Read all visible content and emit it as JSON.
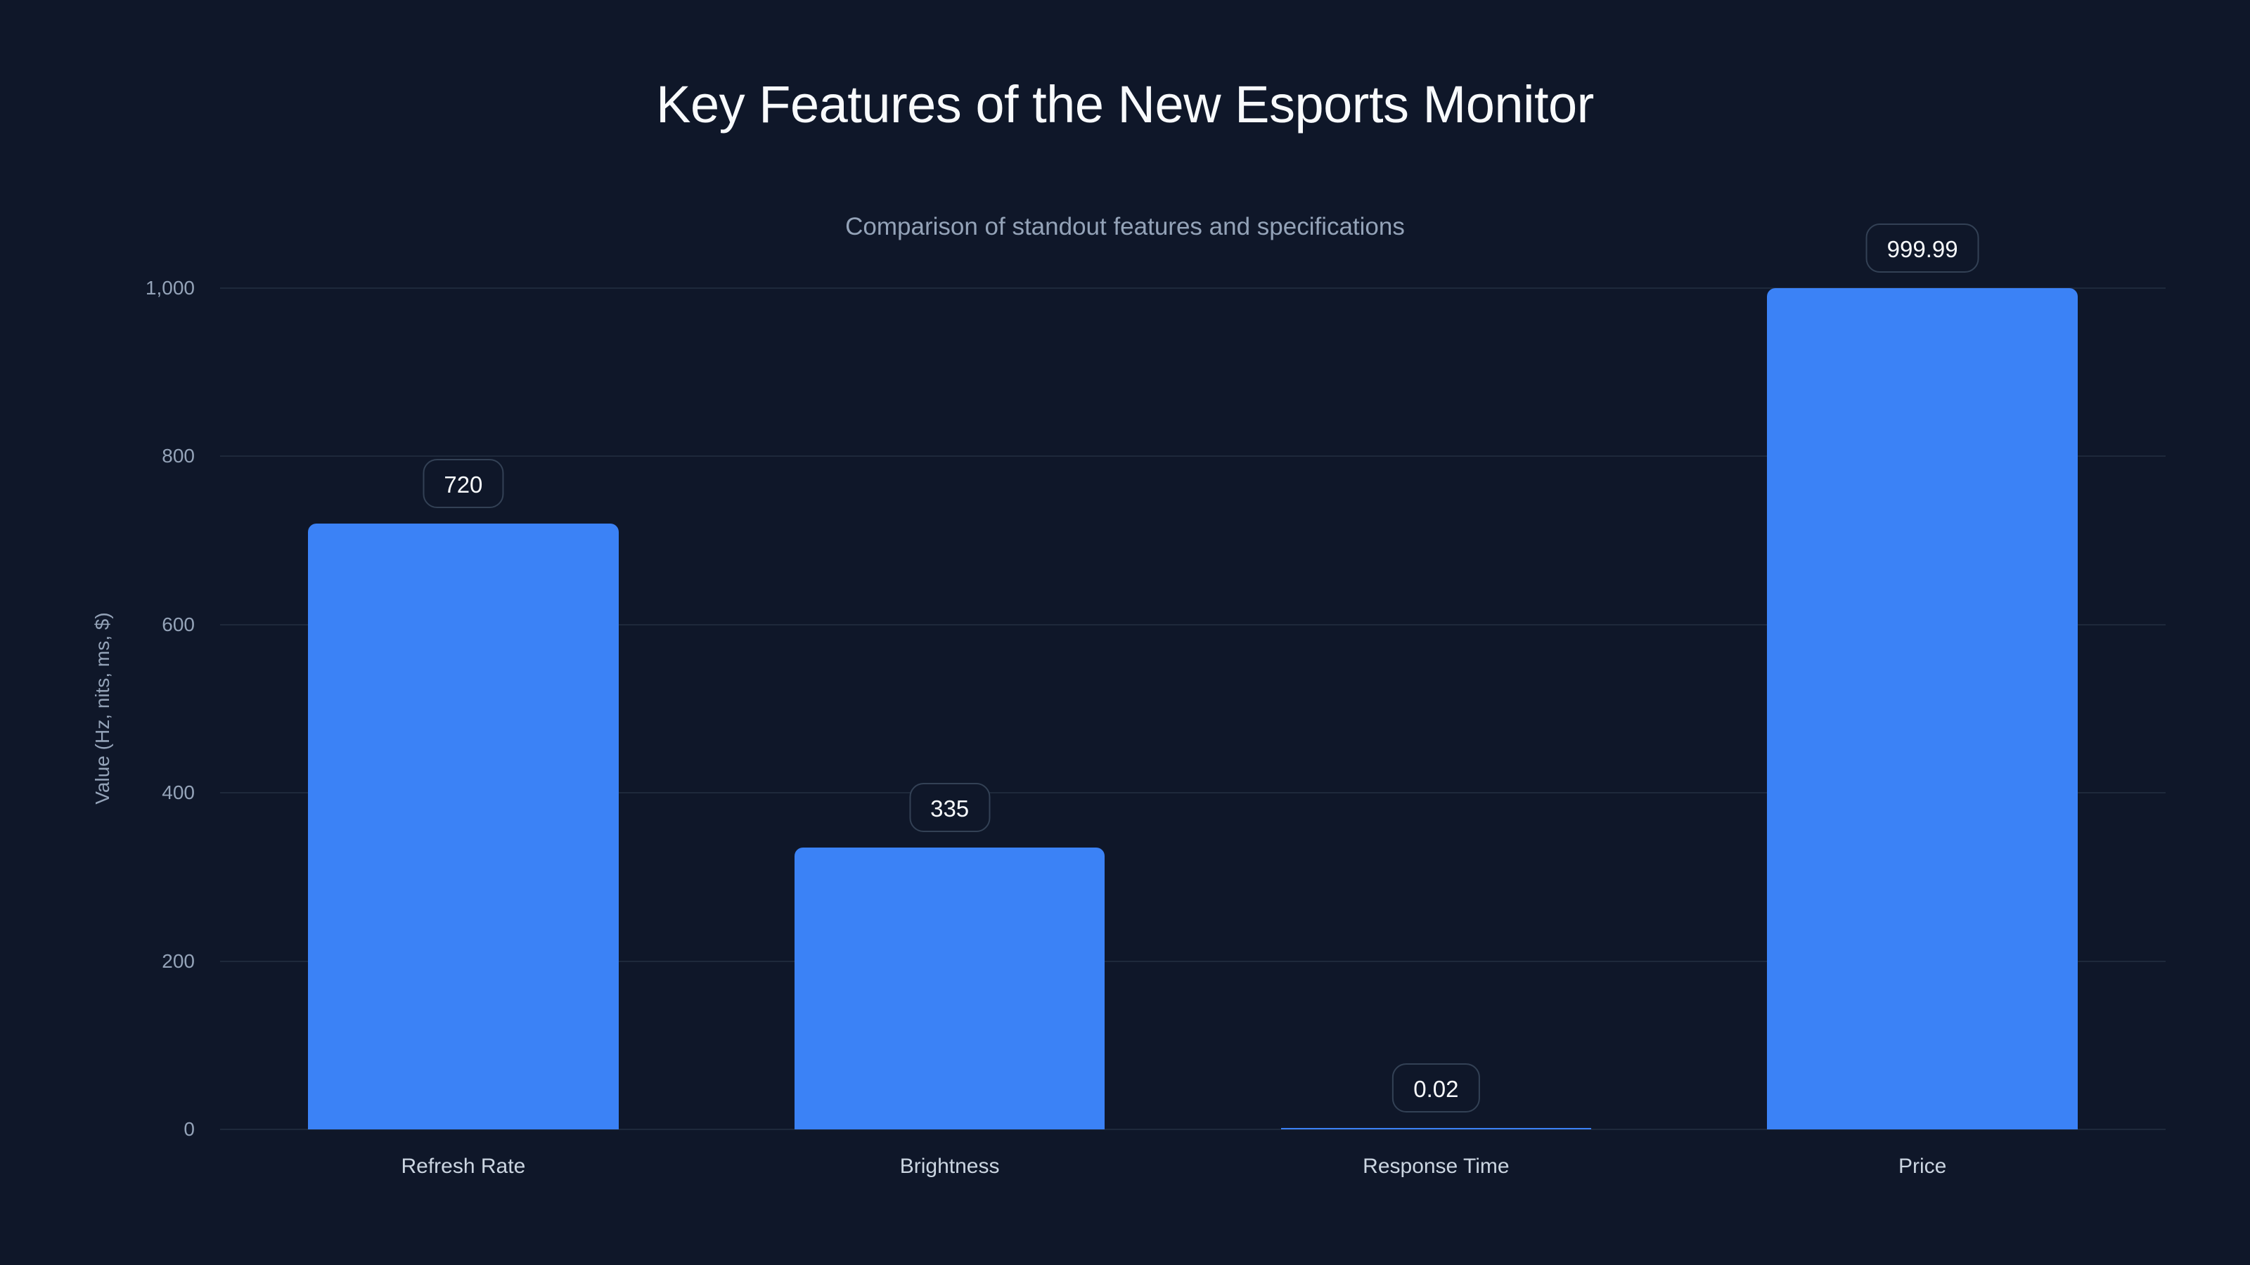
{
  "header": {
    "title": "Key Features of the New Esports Monitor",
    "subtitle": "Comparison of standout features and specifications"
  },
  "colors": {
    "background": "#0f1729",
    "bar": "#3b82f6",
    "gridline": "#1e293b",
    "title": "#f8fafc",
    "subtitle": "#94a3b8",
    "tick": "#94a3b8",
    "category": "#cbd5e1",
    "badge_border": "#334155"
  },
  "axes": {
    "ylabel": "Value (Hz, nits, ms, $)",
    "yticks": [
      "0",
      "200",
      "400",
      "600",
      "800",
      "1,000"
    ]
  },
  "chart_data": {
    "type": "bar",
    "title": "Key Features of the New Esports Monitor",
    "subtitle": "Comparison of standout features and specifications",
    "xlabel": "",
    "ylabel": "Value (Hz, nits, ms, $)",
    "categories": [
      "Refresh Rate",
      "Brightness",
      "Response Time",
      "Price"
    ],
    "values": [
      720,
      335,
      0.02,
      999.99
    ],
    "value_labels": [
      "720",
      "335",
      "0.02",
      "999.99"
    ],
    "ylim": [
      0,
      1000
    ],
    "yticks": [
      0,
      200,
      400,
      600,
      800,
      1000
    ],
    "grid": true,
    "legend": null
  }
}
